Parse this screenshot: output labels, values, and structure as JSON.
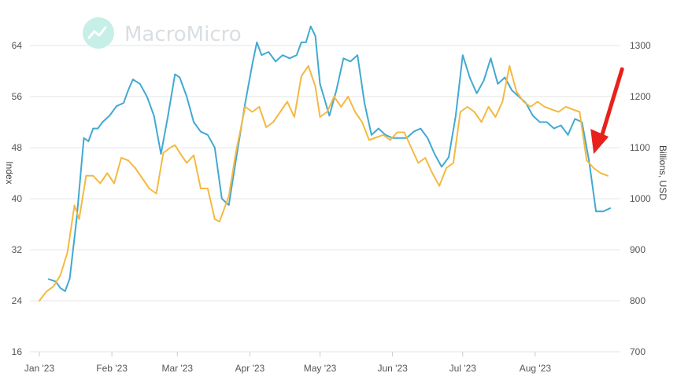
{
  "watermark": "MacroMicro",
  "chart_data": {
    "type": "line",
    "title": "",
    "xlabel": "",
    "ylabel_left": "Index",
    "ylabel_right": "Billions, USD",
    "x_range": [
      "2023-01-01",
      "2023-09-01"
    ],
    "x_tick_labels": [
      "Jan '23",
      "Feb '23",
      "Mar '23",
      "Apr '23",
      "May '23",
      "Jun '23",
      "Jul '23",
      "Aug '23"
    ],
    "x_tick_dates": [
      "2023-01-01",
      "2023-02-01",
      "2023-03-01",
      "2023-04-01",
      "2023-05-01",
      "2023-06-01",
      "2023-07-01",
      "2023-08-01"
    ],
    "y_left_ticks": [
      16,
      24,
      32,
      40,
      48,
      56,
      64
    ],
    "y_left_range": [
      16,
      64
    ],
    "y_right_ticks": [
      700,
      800,
      900,
      1000,
      1100,
      1200,
      1300
    ],
    "y_right_range": [
      700,
      1300
    ],
    "grid": true,
    "colors": {
      "blue": "#42a9d1",
      "orange": "#f4b942",
      "grid": "#e6e6e6",
      "arrow": "#e8211c"
    },
    "series": [
      {
        "axis": "left",
        "color": "#42a9d1",
        "points": [
          [
            "2023-01-05",
            27.4
          ],
          [
            "2023-01-08",
            27.0
          ],
          [
            "2023-01-10",
            26.0
          ],
          [
            "2023-01-12",
            25.5
          ],
          [
            "2023-01-14",
            27.5
          ],
          [
            "2023-01-17",
            37.0
          ],
          [
            "2023-01-20",
            49.5
          ],
          [
            "2023-01-22",
            49.0
          ],
          [
            "2023-01-24",
            51.0
          ],
          [
            "2023-01-26",
            51.0
          ],
          [
            "2023-01-28",
            52.0
          ],
          [
            "2023-01-31",
            53.0
          ],
          [
            "2023-02-03",
            54.5
          ],
          [
            "2023-02-06",
            55.0
          ],
          [
            "2023-02-08",
            57.0
          ],
          [
            "2023-02-10",
            58.7
          ],
          [
            "2023-02-13",
            58.0
          ],
          [
            "2023-02-16",
            56.0
          ],
          [
            "2023-02-19",
            53.0
          ],
          [
            "2023-02-22",
            47.0
          ],
          [
            "2023-02-25",
            53.0
          ],
          [
            "2023-02-28",
            59.5
          ],
          [
            "2023-03-02",
            59.0
          ],
          [
            "2023-03-05",
            56.0
          ],
          [
            "2023-03-08",
            52.0
          ],
          [
            "2023-03-11",
            50.5
          ],
          [
            "2023-03-14",
            50.0
          ],
          [
            "2023-03-17",
            48.0
          ],
          [
            "2023-03-20",
            40.0
          ],
          [
            "2023-03-23",
            39.0
          ],
          [
            "2023-03-26",
            46.0
          ],
          [
            "2023-03-30",
            55.0
          ],
          [
            "2023-04-02",
            61.0
          ],
          [
            "2023-04-04",
            64.5
          ],
          [
            "2023-04-06",
            62.5
          ],
          [
            "2023-04-09",
            63.0
          ],
          [
            "2023-04-12",
            61.5
          ],
          [
            "2023-04-15",
            62.5
          ],
          [
            "2023-04-18",
            62.0
          ],
          [
            "2023-04-21",
            62.5
          ],
          [
            "2023-04-23",
            64.5
          ],
          [
            "2023-04-25",
            64.5
          ],
          [
            "2023-04-27",
            67.0
          ],
          [
            "2023-04-29",
            65.5
          ],
          [
            "2023-05-01",
            58.0
          ],
          [
            "2023-05-03",
            55.5
          ],
          [
            "2023-05-05",
            53.0
          ],
          [
            "2023-05-08",
            57.0
          ],
          [
            "2023-05-11",
            62.0
          ],
          [
            "2023-05-14",
            61.5
          ],
          [
            "2023-05-17",
            62.5
          ],
          [
            "2023-05-20",
            55.0
          ],
          [
            "2023-05-23",
            50.0
          ],
          [
            "2023-05-26",
            51.0
          ],
          [
            "2023-05-29",
            50.0
          ],
          [
            "2023-06-01",
            49.5
          ],
          [
            "2023-06-04",
            49.5
          ],
          [
            "2023-06-07",
            49.5
          ],
          [
            "2023-06-10",
            50.5
          ],
          [
            "2023-06-13",
            51.0
          ],
          [
            "2023-06-16",
            49.5
          ],
          [
            "2023-06-19",
            47.0
          ],
          [
            "2023-06-22",
            45.0
          ],
          [
            "2023-06-25",
            46.5
          ],
          [
            "2023-06-28",
            53.0
          ],
          [
            "2023-07-01",
            62.5
          ],
          [
            "2023-07-04",
            59.0
          ],
          [
            "2023-07-07",
            56.5
          ],
          [
            "2023-07-10",
            58.5
          ],
          [
            "2023-07-13",
            62.0
          ],
          [
            "2023-07-16",
            58.0
          ],
          [
            "2023-07-19",
            59.0
          ],
          [
            "2023-07-22",
            57.0
          ],
          [
            "2023-07-25",
            56.0
          ],
          [
            "2023-07-28",
            55.0
          ],
          [
            "2023-07-31",
            53.0
          ],
          [
            "2023-08-03",
            52.0
          ],
          [
            "2023-08-06",
            52.0
          ],
          [
            "2023-08-09",
            51.0
          ],
          [
            "2023-08-12",
            51.5
          ],
          [
            "2023-08-15",
            50.0
          ],
          [
            "2023-08-18",
            52.5
          ],
          [
            "2023-08-21",
            52.0
          ],
          [
            "2023-08-24",
            46.0
          ],
          [
            "2023-08-27",
            38.0
          ],
          [
            "2023-08-30",
            38.0
          ],
          [
            "2023-09-02",
            38.5
          ]
        ]
      },
      {
        "axis": "right",
        "color": "#f4b942",
        "points": [
          [
            "2023-01-01",
            800
          ],
          [
            "2023-01-04",
            818
          ],
          [
            "2023-01-07",
            828
          ],
          [
            "2023-01-10",
            850
          ],
          [
            "2023-01-13",
            895
          ],
          [
            "2023-01-16",
            987
          ],
          [
            "2023-01-18",
            960
          ],
          [
            "2023-01-21",
            1045
          ],
          [
            "2023-01-24",
            1045
          ],
          [
            "2023-01-27",
            1030
          ],
          [
            "2023-01-30",
            1050
          ],
          [
            "2023-02-02",
            1030
          ],
          [
            "2023-02-05",
            1080
          ],
          [
            "2023-02-08",
            1075
          ],
          [
            "2023-02-11",
            1060
          ],
          [
            "2023-02-14",
            1040
          ],
          [
            "2023-02-17",
            1020
          ],
          [
            "2023-02-20",
            1010
          ],
          [
            "2023-02-23",
            1090
          ],
          [
            "2023-02-26",
            1100
          ],
          [
            "2023-02-28",
            1105
          ],
          [
            "2023-03-02",
            1090
          ],
          [
            "2023-03-05",
            1070
          ],
          [
            "2023-03-08",
            1085
          ],
          [
            "2023-03-11",
            1020
          ],
          [
            "2023-03-14",
            1020
          ],
          [
            "2023-03-17",
            960
          ],
          [
            "2023-03-19",
            955
          ],
          [
            "2023-03-23",
            1005
          ],
          [
            "2023-03-26",
            1090
          ],
          [
            "2023-03-30",
            1180
          ],
          [
            "2023-04-02",
            1170
          ],
          [
            "2023-04-05",
            1180
          ],
          [
            "2023-04-08",
            1140
          ],
          [
            "2023-04-11",
            1150
          ],
          [
            "2023-04-14",
            1170
          ],
          [
            "2023-04-17",
            1190
          ],
          [
            "2023-04-20",
            1160
          ],
          [
            "2023-04-23",
            1240
          ],
          [
            "2023-04-26",
            1260
          ],
          [
            "2023-04-29",
            1220
          ],
          [
            "2023-05-01",
            1160
          ],
          [
            "2023-05-04",
            1170
          ],
          [
            "2023-05-07",
            1200
          ],
          [
            "2023-05-10",
            1180
          ],
          [
            "2023-05-13",
            1200
          ],
          [
            "2023-05-16",
            1170
          ],
          [
            "2023-05-19",
            1150
          ],
          [
            "2023-05-22",
            1115
          ],
          [
            "2023-05-25",
            1120
          ],
          [
            "2023-05-28",
            1125
          ],
          [
            "2023-05-31",
            1115
          ],
          [
            "2023-06-03",
            1130
          ],
          [
            "2023-06-06",
            1130
          ],
          [
            "2023-06-09",
            1100
          ],
          [
            "2023-06-12",
            1070
          ],
          [
            "2023-06-15",
            1080
          ],
          [
            "2023-06-18",
            1050
          ],
          [
            "2023-06-21",
            1025
          ],
          [
            "2023-06-24",
            1060
          ],
          [
            "2023-06-27",
            1070
          ],
          [
            "2023-06-30",
            1170
          ],
          [
            "2023-07-03",
            1180
          ],
          [
            "2023-07-06",
            1170
          ],
          [
            "2023-07-09",
            1150
          ],
          [
            "2023-07-12",
            1180
          ],
          [
            "2023-07-15",
            1160
          ],
          [
            "2023-07-18",
            1190
          ],
          [
            "2023-07-21",
            1260
          ],
          [
            "2023-07-24",
            1210
          ],
          [
            "2023-07-27",
            1190
          ],
          [
            "2023-07-30",
            1180
          ],
          [
            "2023-08-02",
            1190
          ],
          [
            "2023-08-05",
            1180
          ],
          [
            "2023-08-08",
            1175
          ],
          [
            "2023-08-11",
            1170
          ],
          [
            "2023-08-14",
            1180
          ],
          [
            "2023-08-17",
            1175
          ],
          [
            "2023-08-20",
            1170
          ],
          [
            "2023-08-23",
            1075
          ],
          [
            "2023-08-26",
            1060
          ],
          [
            "2023-08-29",
            1050
          ],
          [
            "2023-09-01",
            1045
          ]
        ]
      }
    ],
    "annotations": [
      {
        "type": "arrow",
        "color": "#e8211c",
        "points_to": [
          "2023-08-26",
          47
        ]
      }
    ]
  }
}
